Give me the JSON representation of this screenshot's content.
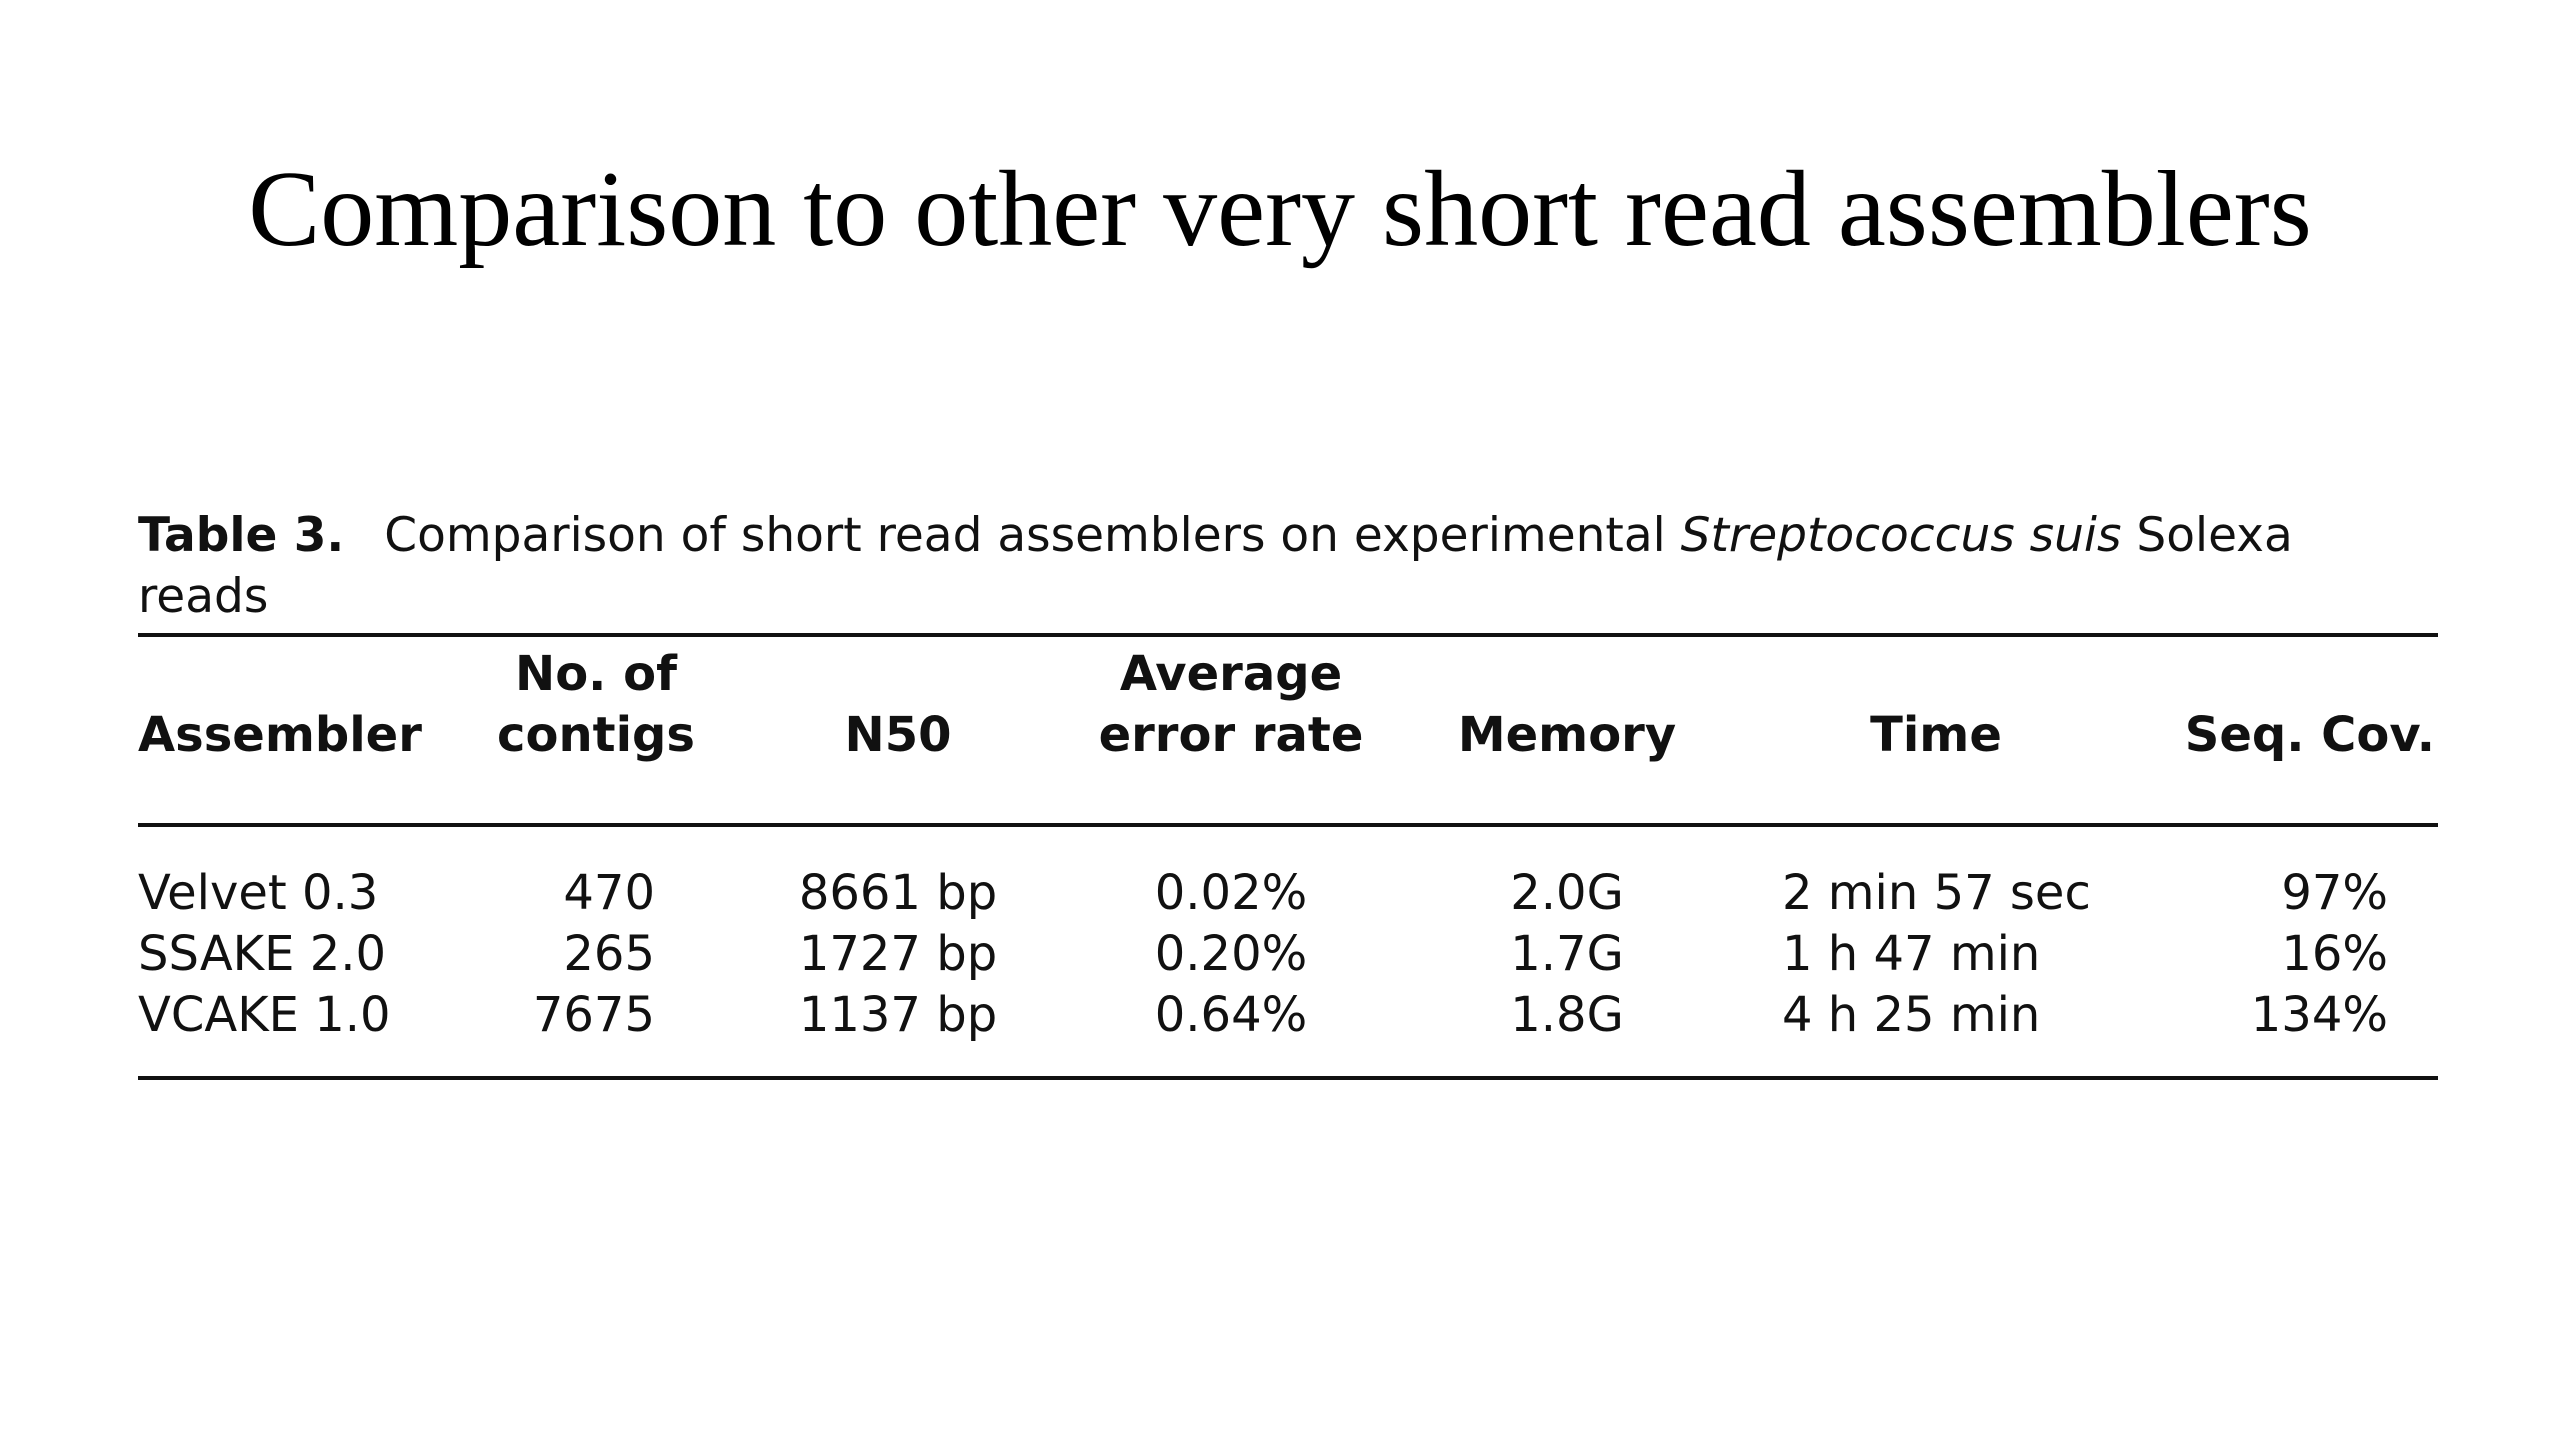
{
  "title": "Comparison to other very short read assemblers",
  "table": {
    "caption": {
      "label": "Table 3.",
      "text_before": "Comparison of short read assemblers on experimental ",
      "italic": "Streptococcus suis",
      "text_after": " Solexa reads"
    },
    "columns": [
      [
        "Assembler"
      ],
      [
        "No. of",
        "contigs"
      ],
      [
        "N50"
      ],
      [
        "Average",
        "error rate"
      ],
      [
        "Memory"
      ],
      [
        "Time"
      ],
      [
        "Seq. Cov."
      ]
    ],
    "rows": [
      [
        "Velvet 0.3",
        "470",
        "8661 bp",
        "0.02%",
        "2.0G",
        "2 min 57 sec",
        "97%"
      ],
      [
        "SSAKE 2.0",
        "265",
        "1727 bp",
        "0.20%",
        "1.7G",
        "1 h 47 min",
        "16%"
      ],
      [
        "VCAKE 1.0",
        "7675",
        "1137 bp",
        "0.64%",
        "1.8G",
        "4 h 25 min",
        "134%"
      ]
    ]
  }
}
